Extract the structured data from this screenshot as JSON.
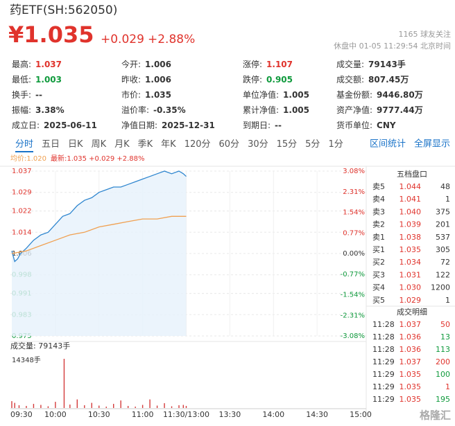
{
  "header": {
    "title": "药ETF(SH:562050)",
    "price": "¥1.035",
    "change": "+0.029",
    "change_pct": "+2.88%",
    "followers": "1165 球友关注",
    "status": "休盘中 01-05 11:29:54 北京时间"
  },
  "stats": [
    [
      {
        "label": "最高:",
        "value": "1.037",
        "color": "#e0332c"
      },
      {
        "label": "今开:",
        "value": "1.006"
      },
      {
        "label": "涨停:",
        "value": "1.107",
        "color": "#e0332c"
      },
      {
        "label": "成交量:",
        "value": "79143手"
      }
    ],
    [
      {
        "label": "最低:",
        "value": "1.003",
        "color": "#0f9a3c"
      },
      {
        "label": "昨收:",
        "value": "1.006"
      },
      {
        "label": "跌停:",
        "value": "0.905",
        "color": "#0f9a3c"
      },
      {
        "label": "成交额:",
        "value": "807.45万"
      }
    ],
    [
      {
        "label": "换手:",
        "value": "--"
      },
      {
        "label": "市价:",
        "value": "1.035"
      },
      {
        "label": "单位净值:",
        "value": "1.005"
      },
      {
        "label": "基金份额:",
        "value": "9446.80万"
      }
    ],
    [
      {
        "label": "振幅:",
        "value": "3.38%"
      },
      {
        "label": "溢价率:",
        "value": "-0.35%"
      },
      {
        "label": "累计净值:",
        "value": "1.005"
      },
      {
        "label": "资产净值:",
        "value": "9777.44万"
      }
    ],
    [
      {
        "label": "成立日:",
        "value": "2025-06-11"
      },
      {
        "label": "净值日期:",
        "value": "2025-12-31"
      },
      {
        "label": "到期日:",
        "value": "--"
      },
      {
        "label": "货币单位:",
        "value": "CNY"
      }
    ]
  ],
  "tabs": {
    "items": [
      "分时",
      "五日",
      "日K",
      "周K",
      "月K",
      "季K",
      "年K",
      "120分",
      "60分",
      "30分",
      "15分",
      "5分",
      "1分"
    ],
    "active": 0,
    "links": [
      "区间统计",
      "全屏显示"
    ]
  },
  "chart_data": [
    {
      "type": "line",
      "series": [
        {
          "name": "均价:1.020",
          "color": "#f0a050",
          "x": [
            0,
            10,
            20,
            30,
            40,
            50,
            60,
            70,
            80,
            90,
            100,
            110,
            120
          ],
          "values": [
            1.006,
            1.007,
            1.009,
            1.011,
            1.013,
            1.014,
            1.016,
            1.017,
            1.018,
            1.019,
            1.019,
            1.02,
            1.02
          ]
        },
        {
          "name": "最新:1.035 +0.029 +2.88%",
          "color": "#2f86cf",
          "x": [
            0,
            1,
            2,
            4,
            6,
            10,
            15,
            20,
            25,
            30,
            35,
            40,
            45,
            50,
            55,
            60,
            65,
            70,
            75,
            80,
            85,
            90,
            95,
            100,
            105,
            110,
            115,
            118,
            120
          ],
          "values": [
            1.007,
            1.005,
            1.003,
            1.004,
            1.006,
            1.008,
            1.011,
            1.013,
            1.014,
            1.017,
            1.02,
            1.021,
            1.024,
            1.026,
            1.027,
            1.029,
            1.03,
            1.031,
            1.031,
            1.032,
            1.033,
            1.034,
            1.035,
            1.036,
            1.037,
            1.036,
            1.037,
            1.036,
            1.035
          ]
        }
      ],
      "xlim": [
        0,
        240
      ],
      "ylim": [
        0.975,
        1.037
      ],
      "yticks": [
        1.037,
        1.029,
        1.022,
        1.014,
        1.006,
        0.998,
        0.991,
        0.983,
        0.975
      ],
      "y2lim": [
        -3.08,
        3.08
      ],
      "y2ticks": [
        {
          "value": 3.08,
          "label": "3.08%"
        },
        {
          "value": 2.31,
          "label": "2.31%"
        },
        {
          "value": 1.54,
          "label": "1.54%"
        },
        {
          "value": 0.77,
          "label": "0.77%"
        },
        {
          "value": 0,
          "label": "0.00%"
        },
        {
          "value": -0.77,
          "label": "-0.77%"
        },
        {
          "value": -1.54,
          "label": "-1.54%"
        },
        {
          "value": -2.31,
          "label": "-2.31%"
        },
        {
          "value": -3.08,
          "label": "-3.08%"
        }
      ],
      "grid": true
    },
    {
      "type": "bar",
      "title": "成交量: 79143手",
      "color": "#d43a3a",
      "x": [
        0,
        2,
        5,
        10,
        15,
        20,
        25,
        30,
        36,
        40,
        45,
        50,
        55,
        60,
        65,
        70,
        75,
        80,
        85,
        90,
        95,
        100,
        105,
        110,
        115,
        118,
        120
      ],
      "values": [
        2000,
        1500,
        800,
        600,
        1200,
        900,
        500,
        1800,
        14348,
        1000,
        2500,
        800,
        1500,
        700,
        400,
        1200,
        2200,
        600,
        400,
        900,
        2500,
        700,
        1400,
        500,
        800,
        900,
        600
      ],
      "xlim": [
        0,
        240
      ],
      "ylim": [
        0,
        14348
      ],
      "yticks": [
        {
          "value": 14348,
          "label": "14348手"
        }
      ],
      "xticks": [
        {
          "value": 0,
          "label": "09:30"
        },
        {
          "value": 30,
          "label": "10:00"
        },
        {
          "value": 60,
          "label": "10:30"
        },
        {
          "value": 90,
          "label": "11:00"
        },
        {
          "value": 120,
          "label": "11:30/13:00"
        },
        {
          "value": 150,
          "label": "13:30"
        },
        {
          "value": 180,
          "label": "14:00"
        },
        {
          "value": 210,
          "label": "14:30"
        },
        {
          "value": 240,
          "label": "15:00"
        }
      ]
    }
  ],
  "order_book": {
    "title": "五档盘口",
    "rows": [
      [
        "卖5",
        "1.044",
        "48"
      ],
      [
        "卖4",
        "1.041",
        "1"
      ],
      [
        "卖3",
        "1.040",
        "375"
      ],
      [
        "卖2",
        "1.039",
        "201"
      ],
      [
        "卖1",
        "1.038",
        "537"
      ],
      [
        "买1",
        "1.035",
        "305"
      ],
      [
        "买2",
        "1.034",
        "72"
      ],
      [
        "买3",
        "1.031",
        "122"
      ],
      [
        "买4",
        "1.030",
        "1200"
      ],
      [
        "买5",
        "1.029",
        "1"
      ]
    ]
  },
  "trades": {
    "title": "成交明细",
    "rows": [
      {
        "time": "11:28",
        "price": "1.037",
        "volume": "50",
        "color": "#e0332c"
      },
      {
        "time": "11:28",
        "price": "1.036",
        "volume": "13",
        "color": "#0f9a3c"
      },
      {
        "time": "11:28",
        "price": "1.036",
        "volume": "113",
        "color": "#0f9a3c"
      },
      {
        "time": "11:29",
        "price": "1.037",
        "volume": "200",
        "color": "#e0332c"
      },
      {
        "time": "11:29",
        "price": "1.035",
        "volume": "100",
        "color": "#0f9a3c"
      },
      {
        "time": "11:29",
        "price": "1.035",
        "volume": "1",
        "color": "#e0332c"
      },
      {
        "time": "11:29",
        "price": "1.035",
        "volume": "195",
        "color": "#0f9a3c"
      }
    ]
  },
  "watermark": "格隆汇"
}
